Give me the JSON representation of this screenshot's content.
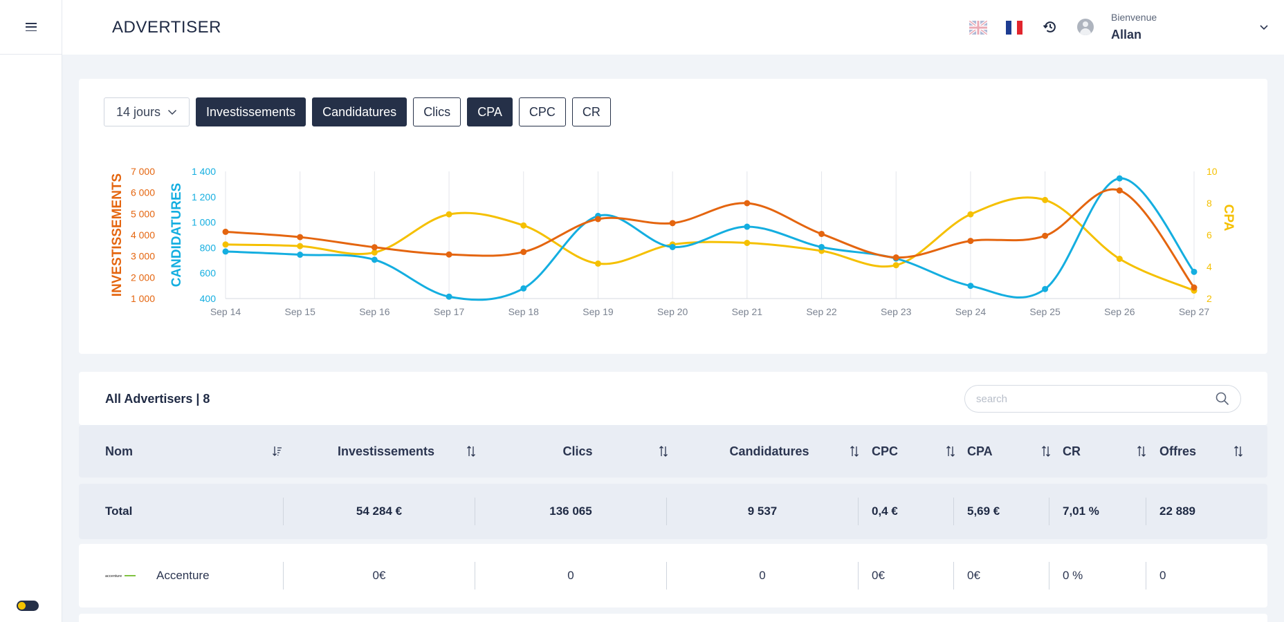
{
  "app": {
    "title": "ADVERTISER"
  },
  "header": {
    "greeting": "Bienvenue",
    "user_name": "Allan",
    "languages": [
      "en",
      "fr"
    ]
  },
  "filters": {
    "period": "14 jours",
    "metrics": [
      {
        "label": "Investissements",
        "active": true
      },
      {
        "label": "Candidatures",
        "active": true
      },
      {
        "label": "Clics",
        "active": false
      },
      {
        "label": "CPA",
        "active": true
      },
      {
        "label": "CPC",
        "active": false
      },
      {
        "label": "CR",
        "active": false
      }
    ]
  },
  "colors": {
    "investissements": "#e4650f",
    "candidatures": "#14aee0",
    "cpa": "#f5c000",
    "dark": "#253048"
  },
  "chart_data": {
    "type": "line",
    "x": [
      "Sep 14",
      "Sep 15",
      "Sep 16",
      "Sep 17",
      "Sep 18",
      "Sep 19",
      "Sep 20",
      "Sep 21",
      "Sep 22",
      "Sep 23",
      "Sep 24",
      "Sep 25",
      "Sep 26",
      "Sep 27"
    ],
    "axes": {
      "left_outer": {
        "label": "INVESTISSEMENTS",
        "ticks": [
          "1 000",
          "2 000",
          "3 000",
          "4 000",
          "5 000",
          "6 000",
          "7 000"
        ],
        "range": [
          1000,
          7000
        ]
      },
      "left_inner": {
        "label": "CANDIDATURES",
        "ticks": [
          "400",
          "600",
          "800",
          "1 000",
          "1 200",
          "1 400"
        ],
        "range": [
          400,
          1400
        ]
      },
      "right": {
        "label": "CPA",
        "ticks": [
          "2",
          "4",
          "6",
          "8",
          "10"
        ],
        "range": [
          2,
          10
        ]
      }
    },
    "series": [
      {
        "name": "Investissements",
        "axis": "left_outer",
        "values": [
          4150,
          3900,
          3420,
          3080,
          3200,
          4750,
          4560,
          5500,
          4050,
          2940,
          3720,
          3960,
          6100,
          1520
        ]
      },
      {
        "name": "Candidatures",
        "axis": "left_inner",
        "values": [
          770,
          745,
          705,
          415,
          480,
          1050,
          805,
          965,
          805,
          715,
          500,
          475,
          1345,
          610
        ]
      },
      {
        "name": "CPA",
        "axis": "right",
        "values": [
          5.4,
          5.3,
          4.9,
          7.3,
          6.6,
          4.2,
          5.4,
          5.5,
          5.0,
          4.1,
          7.3,
          8.2,
          4.5,
          2.5
        ]
      }
    ],
    "grid": "vertical"
  },
  "list": {
    "title": "All Advertisers | 8",
    "search_placeholder": "search"
  },
  "table": {
    "columns": [
      "Nom",
      "Investissements",
      "Clics",
      "Candidatures",
      "CPC",
      "CPA",
      "CR",
      "Offres"
    ],
    "total": [
      "Total",
      "54 284 €",
      "136 065",
      "9 537",
      "0,4 €",
      "5,69 €",
      "7,01 %",
      "22 889"
    ],
    "rows": [
      {
        "logo_text": "accenture",
        "name": "Accenture",
        "investissements": "0€",
        "clics": "0",
        "candidatures": "0",
        "cpc": "0€",
        "cpa": "0€",
        "cr": "0 %",
        "offres": "0"
      }
    ]
  }
}
